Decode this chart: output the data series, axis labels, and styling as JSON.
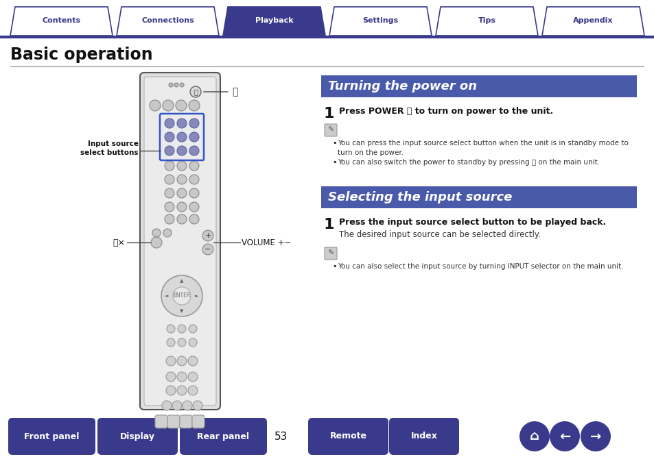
{
  "bg_color": "#ffffff",
  "tab_items": [
    "Contents",
    "Connections",
    "Playback",
    "Settings",
    "Tips",
    "Appendix"
  ],
  "tab_active": 2,
  "tab_color_active": "#3a3a8c",
  "tab_color_inactive": "#ffffff",
  "tab_text_color_active": "#ffffff",
  "tab_text_color_inactive": "#3a3a8c",
  "tab_border_color": "#3a3a8c",
  "page_title": "Basic operation",
  "section1_title": "Turning the power on",
  "section1_bg": "#4a5aaa",
  "section1_text_color": "#ffffff",
  "section2_title": "Selecting the input source",
  "section2_bg": "#4a5aaa",
  "section2_text_color": "#ffffff",
  "step1_text": "Press POWER ⏻ to turn on power to the unit.",
  "note1_bullet1": "You can press the input source select button when the unit is in standby mode to",
  "note1_bullet1b": "turn on the power.",
  "note1_bullet2": "You can also switch the power to standby by pressing ⏻ on the main unit.",
  "step2_text": "Press the input source select button to be played back.",
  "step2_sub": "The desired input source can be selected directly.",
  "note2_bullet1": "You can also select the input source by turning INPUT selector on the main unit.",
  "label_input_source_1": "Input source",
  "label_input_source_2": "select buttons",
  "label_volume": "VOLUME +−",
  "label_mute": "⑂×",
  "bottom_buttons": [
    "Front panel",
    "Display",
    "Rear panel",
    "Remote",
    "Index"
  ],
  "bottom_page_num": "53",
  "bottom_btn_color": "#3a3a8c",
  "bottom_btn_text_color": "#ffffff"
}
